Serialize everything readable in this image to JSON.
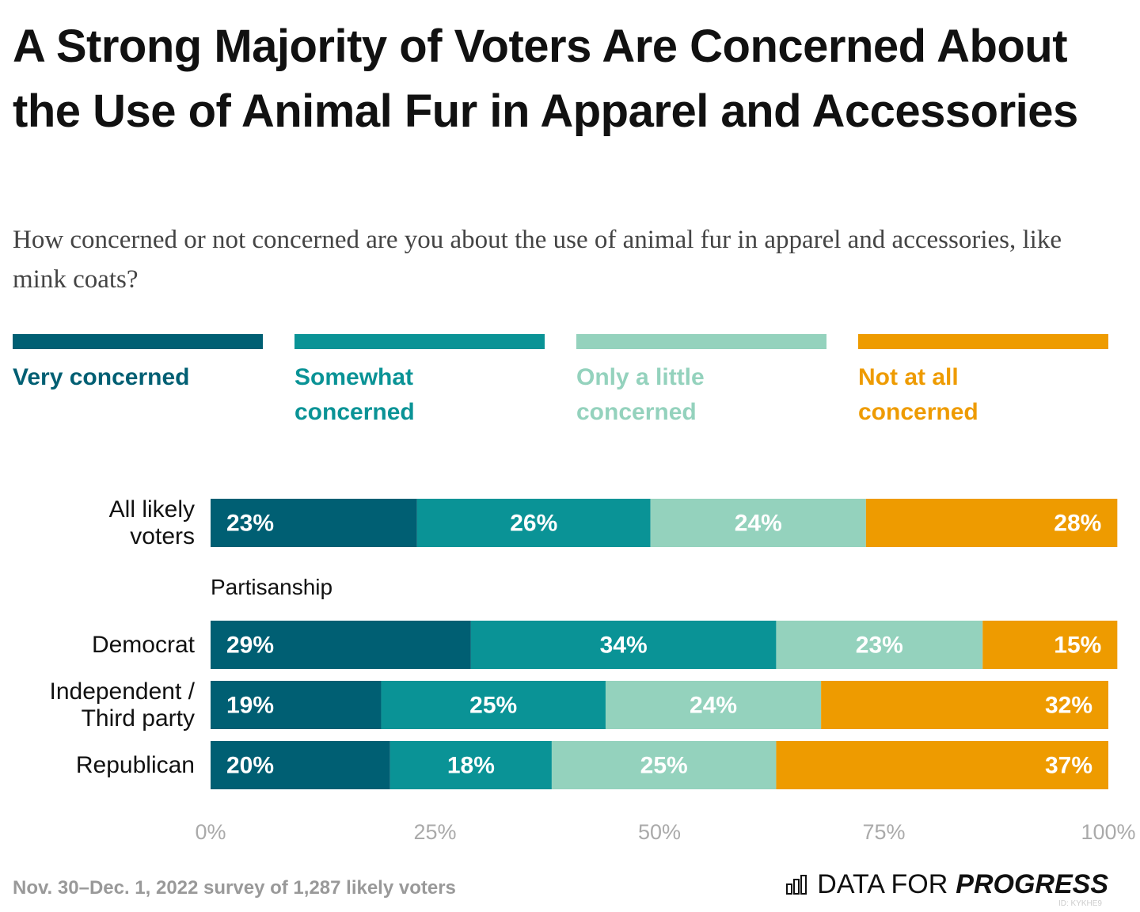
{
  "chart_data": {
    "type": "stacked-bar-horizontal",
    "title": "A Strong Majority of Voters Are Concerned About the Use of Animal Fur in Apparel and Accessories",
    "subtitle": "How concerned or not concerned are you about the use of animal fur in apparel and accessories, like mink coats?",
    "categories": [
      "All likely voters",
      "Democrat",
      "Independent / Third party",
      "Republican"
    ],
    "group_label": "Partisanship",
    "series": [
      {
        "name": "Very concerned",
        "color": "#005f73",
        "values": [
          23,
          29,
          19,
          20
        ],
        "value_labels": [
          "23%",
          "29%",
          "19%",
          "20%"
        ]
      },
      {
        "name": "Somewhat concerned",
        "color": "#0a9396",
        "values": [
          26,
          34,
          25,
          18
        ],
        "value_labels": [
          "26%",
          "34%",
          "25%",
          "18%"
        ]
      },
      {
        "name": "Only a little concerned",
        "color": "#94d2bd",
        "values": [
          24,
          23,
          24,
          25
        ],
        "value_labels": [
          "24%",
          "23%",
          "24%",
          "25%"
        ]
      },
      {
        "name": "Not at all concerned",
        "color": "#ee9b00",
        "values": [
          28,
          15,
          32,
          37
        ],
        "value_labels": [
          "28%",
          "15%",
          "32%",
          "37%"
        ]
      }
    ],
    "xlim": [
      0,
      100
    ],
    "xticks": [
      {
        "value": 0,
        "label": "0%"
      },
      {
        "value": 25,
        "label": "25%"
      },
      {
        "value": 50,
        "label": "50%"
      },
      {
        "value": 75,
        "label": "75%"
      },
      {
        "value": 100,
        "label": "100%"
      }
    ],
    "grid": false,
    "source": "Nov. 30–Dec. 1, 2022 survey of 1,287 likely voters",
    "brand_text": "DATA FOR",
    "brand_emphasis": "PROGRESS",
    "chart_id": "ID: KYKHE9"
  }
}
